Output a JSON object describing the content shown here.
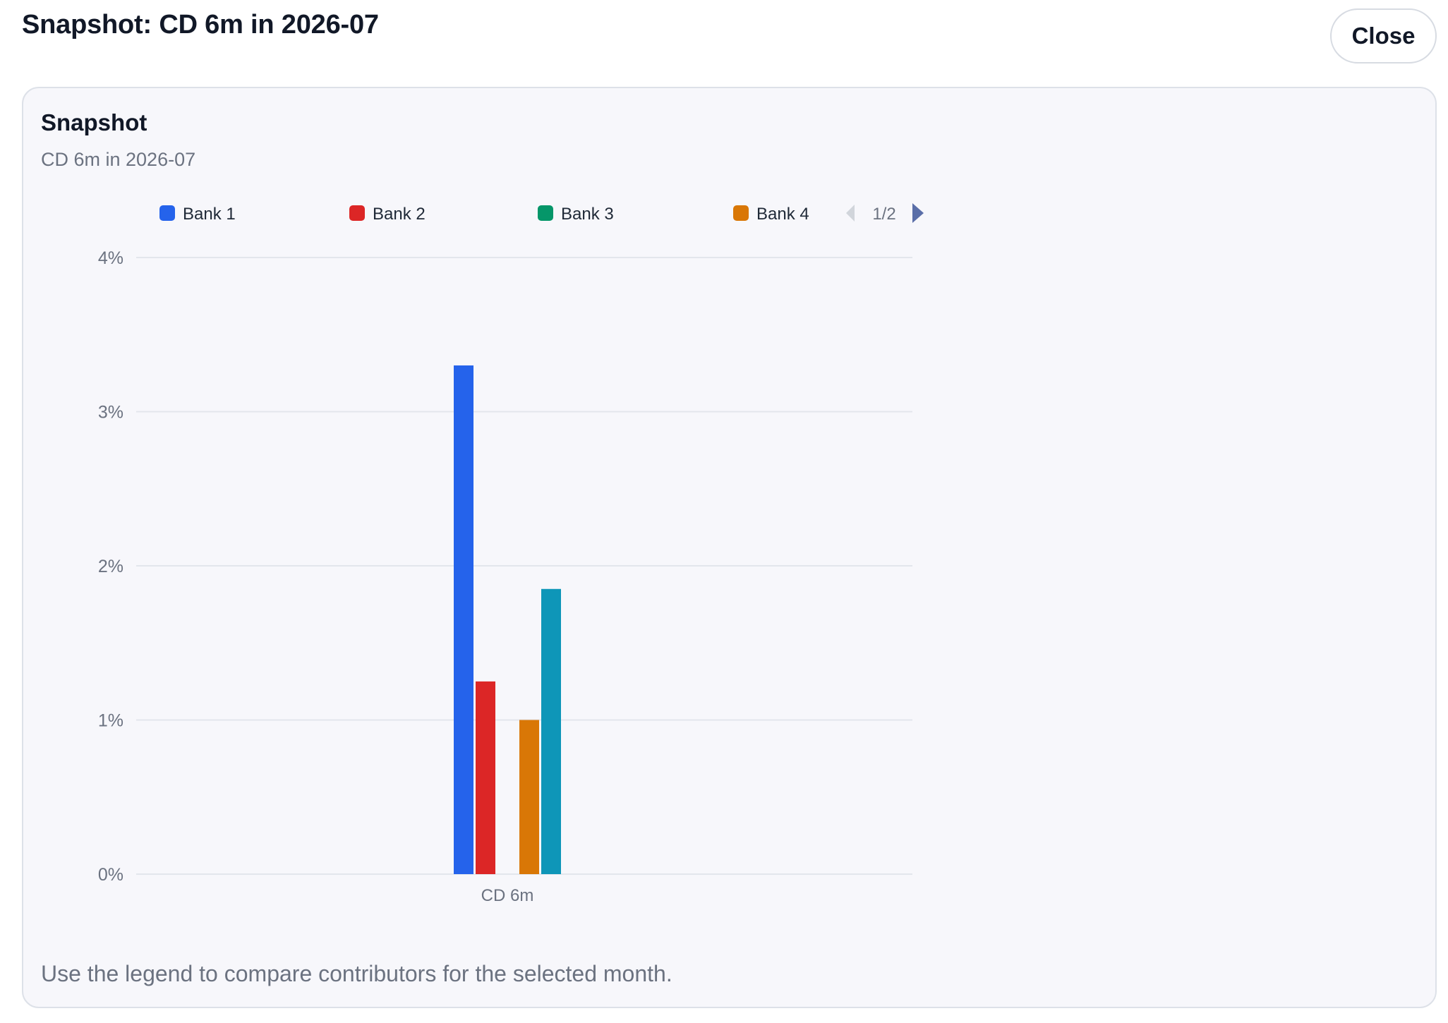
{
  "dialog": {
    "title": "Snapshot: CD 6m in 2026-07",
    "close_label": "Close"
  },
  "card": {
    "title": "Snapshot",
    "subtitle": "CD 6m in 2026-07",
    "footer": "Use the legend to compare contributors for the selected month."
  },
  "legend": {
    "page_label": "1/2",
    "items": [
      {
        "label": "Bank 1",
        "color": "#2563eb"
      },
      {
        "label": "Bank 2",
        "color": "#dc2626"
      },
      {
        "label": "Bank 3",
        "color": "#059669"
      },
      {
        "label": "Bank 4",
        "color": "#d97706"
      }
    ]
  },
  "chart_data": {
    "type": "bar",
    "categories": [
      "CD 6m"
    ],
    "series": [
      {
        "name": "Bank 1",
        "color": "#2563eb",
        "values": [
          3.3
        ]
      },
      {
        "name": "Bank 2",
        "color": "#dc2626",
        "values": [
          1.25
        ]
      },
      {
        "name": "Bank 3",
        "color": "#059669",
        "values": [
          null
        ]
      },
      {
        "name": "Bank 4",
        "color": "#d97706",
        "values": [
          1.0
        ]
      },
      {
        "color": "#0e96b8",
        "values": [
          1.85
        ]
      }
    ],
    "ylim": [
      0,
      4
    ],
    "yticks": [
      0,
      1,
      2,
      3,
      4
    ],
    "ytick_labels": [
      "0%",
      "1%",
      "2%",
      "3%",
      "4%"
    ],
    "grid": true,
    "legend_position": "top"
  }
}
